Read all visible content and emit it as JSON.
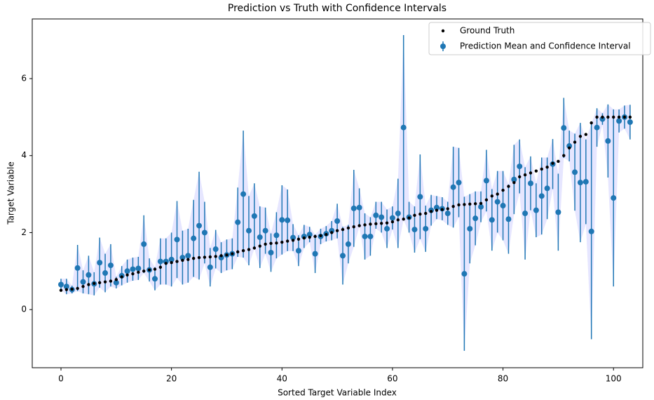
{
  "chart_data": {
    "type": "errorbar",
    "title": "Prediction vs Truth with Confidence Intervals",
    "xlabel": "Sorted Target Variable Index",
    "ylabel": "Target Variable",
    "x": [
      0,
      1,
      2,
      3,
      4,
      5,
      6,
      7,
      8,
      9,
      10,
      11,
      12,
      13,
      14,
      15,
      16,
      17,
      18,
      19,
      20,
      21,
      22,
      23,
      24,
      25,
      26,
      27,
      28,
      29,
      30,
      31,
      32,
      33,
      34,
      35,
      36,
      37,
      38,
      39,
      40,
      41,
      42,
      43,
      44,
      45,
      46,
      47,
      48,
      49,
      50,
      51,
      52,
      53,
      54,
      55,
      56,
      57,
      58,
      59,
      60,
      61,
      62,
      63,
      64,
      65,
      66,
      67,
      68,
      69,
      70,
      71,
      72,
      73,
      74,
      75,
      76,
      77,
      78,
      79,
      80,
      81,
      82,
      83,
      84,
      85,
      86,
      87,
      88,
      89,
      90,
      91,
      92,
      93,
      94,
      95,
      96,
      97,
      98,
      99,
      100,
      101,
      102,
      103
    ],
    "series": [
      {
        "name": "Ground Truth",
        "color": "#000000",
        "values": [
          0.5,
          0.52,
          0.53,
          0.55,
          0.6,
          0.65,
          0.68,
          0.7,
          0.72,
          0.74,
          0.78,
          0.85,
          0.9,
          0.93,
          0.97,
          1.0,
          1.03,
          1.05,
          1.1,
          1.2,
          1.22,
          1.25,
          1.28,
          1.3,
          1.33,
          1.35,
          1.36,
          1.37,
          1.38,
          1.4,
          1.42,
          1.45,
          1.5,
          1.53,
          1.56,
          1.6,
          1.65,
          1.7,
          1.72,
          1.73,
          1.75,
          1.78,
          1.8,
          1.83,
          1.86,
          1.88,
          1.9,
          1.92,
          1.95,
          2.0,
          2.05,
          2.08,
          2.12,
          2.15,
          2.18,
          2.2,
          2.22,
          2.23,
          2.24,
          2.25,
          2.28,
          2.33,
          2.35,
          2.38,
          2.45,
          2.48,
          2.5,
          2.55,
          2.58,
          2.6,
          2.62,
          2.68,
          2.72,
          2.73,
          2.74,
          2.75,
          2.76,
          2.85,
          2.95,
          3.0,
          3.1,
          3.2,
          3.3,
          3.45,
          3.5,
          3.55,
          3.6,
          3.65,
          3.7,
          3.8,
          3.85,
          4.0,
          4.2,
          4.35,
          4.5,
          4.55,
          4.85,
          5.0,
          5.0,
          5.0,
          5.0,
          5.0,
          5.0,
          5.0
        ]
      },
      {
        "name": "Prediction Mean and Confidence Interval",
        "color": "#1f77b4",
        "band_color": "#e0e0ff",
        "values": [
          0.65,
          0.6,
          0.52,
          1.08,
          0.72,
          0.9,
          0.67,
          1.22,
          0.95,
          1.15,
          0.7,
          0.88,
          1.0,
          1.05,
          1.07,
          1.7,
          1.03,
          0.8,
          1.25,
          1.25,
          1.3,
          1.82,
          1.35,
          1.4,
          1.85,
          2.18,
          2.0,
          1.1,
          1.57,
          1.35,
          1.42,
          1.45,
          2.27,
          3.0,
          2.05,
          2.43,
          1.88,
          2.05,
          1.48,
          1.93,
          2.33,
          2.32,
          1.87,
          1.53,
          1.9,
          1.95,
          1.45,
          1.9,
          1.97,
          2.05,
          2.3,
          1.4,
          1.7,
          2.63,
          2.65,
          1.9,
          1.9,
          2.45,
          2.4,
          2.1,
          2.38,
          2.5,
          4.73,
          2.4,
          2.08,
          2.93,
          2.1,
          2.58,
          2.65,
          2.62,
          2.5,
          3.18,
          3.3,
          0.93,
          2.1,
          2.37,
          2.67,
          3.35,
          2.33,
          2.8,
          2.7,
          2.35,
          3.38,
          3.72,
          2.5,
          3.28,
          2.58,
          2.95,
          3.15,
          3.78,
          2.53,
          4.72,
          4.25,
          3.57,
          3.3,
          3.32,
          2.03,
          4.73,
          4.95,
          4.38,
          2.9,
          4.9,
          5.0,
          4.87
        ],
        "errors": [
          0.15,
          0.2,
          0.1,
          0.6,
          0.3,
          0.5,
          0.3,
          0.65,
          0.5,
          0.55,
          0.15,
          0.25,
          0.3,
          0.3,
          0.3,
          0.75,
          0.3,
          0.3,
          0.6,
          0.6,
          0.7,
          1.0,
          0.7,
          0.7,
          1.0,
          1.4,
          0.8,
          0.5,
          0.5,
          0.4,
          0.4,
          0.4,
          0.9,
          1.65,
          0.9,
          0.85,
          0.8,
          0.6,
          0.5,
          0.6,
          0.9,
          0.8,
          0.35,
          0.4,
          0.3,
          0.2,
          0.5,
          0.2,
          0.2,
          0.25,
          0.45,
          0.75,
          0.5,
          1.0,
          0.5,
          0.6,
          0.5,
          0.35,
          0.4,
          0.5,
          0.3,
          0.9,
          2.4,
          0.4,
          0.6,
          1.1,
          0.6,
          0.4,
          0.3,
          0.3,
          0.3,
          1.05,
          0.9,
          2.0,
          0.9,
          0.7,
          0.4,
          0.8,
          0.8,
          0.8,
          0.9,
          0.9,
          0.9,
          0.7,
          1.2,
          0.7,
          0.7,
          1.0,
          0.8,
          0.65,
          1.0,
          0.78,
          0.4,
          1.0,
          1.55,
          1.1,
          2.8,
          0.5,
          0.15,
          0.95,
          2.3,
          0.3,
          0.3,
          0.45
        ]
      }
    ],
    "xlim": [
      -5.2,
      105.3
    ],
    "ylim": [
      -1.51,
      7.55
    ],
    "xticks": [
      0,
      20,
      40,
      60,
      80,
      100
    ],
    "yticks": [
      0,
      2,
      4,
      6
    ],
    "legend": "upper right"
  }
}
